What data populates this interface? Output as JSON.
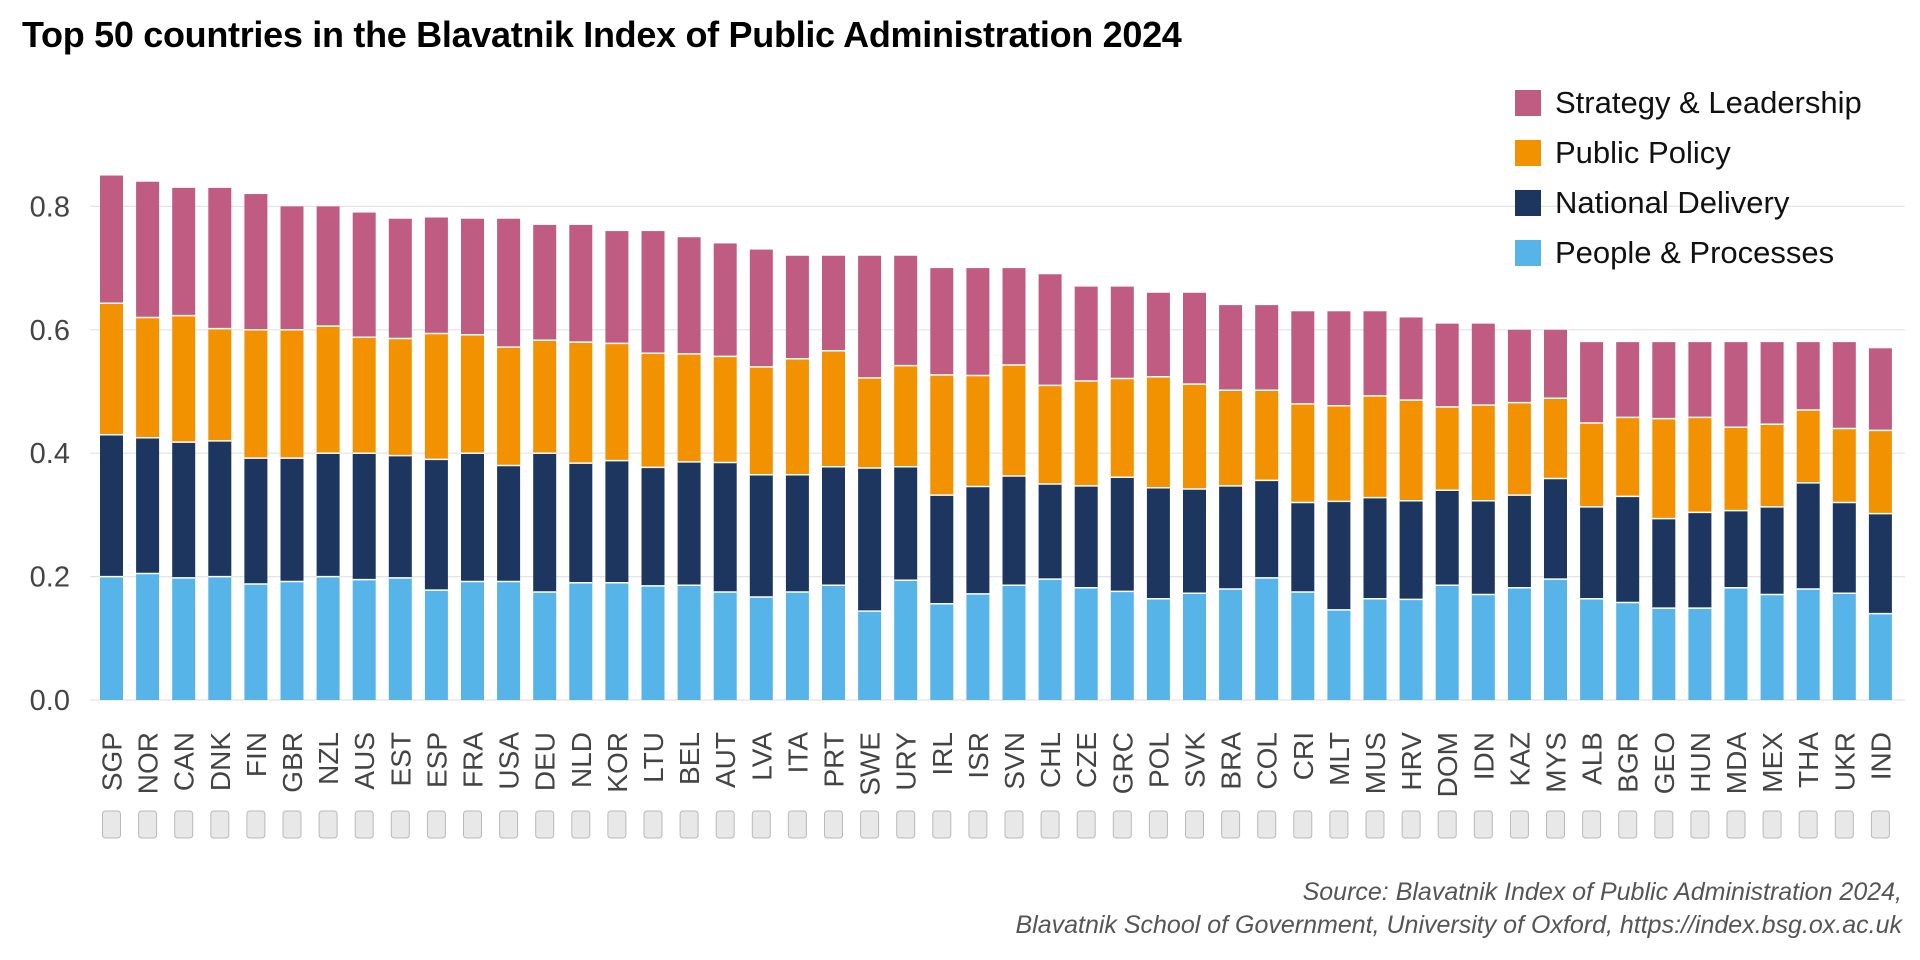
{
  "chart_data": {
    "type": "bar",
    "stacked": true,
    "title": "Top 50 countries in the Blavatnik Index of Public Administration 2024",
    "xlabel": "",
    "ylabel": "",
    "ylim": [
      0,
      0.86
    ],
    "yticks": [
      "0.0",
      "0.2",
      "0.4",
      "0.6",
      "0.8"
    ],
    "grid": "horizontal",
    "legend_position": "top-right",
    "categories": [
      "SGP",
      "NOR",
      "CAN",
      "DNK",
      "FIN",
      "GBR",
      "NZL",
      "AUS",
      "EST",
      "ESP",
      "FRA",
      "USA",
      "DEU",
      "NLD",
      "KOR",
      "LTU",
      "BEL",
      "AUT",
      "LVA",
      "ITA",
      "PRT",
      "SWE",
      "URY",
      "IRL",
      "ISR",
      "SVN",
      "CHL",
      "CZE",
      "GRC",
      "POL",
      "SVK",
      "BRA",
      "COL",
      "CRI",
      "MLT",
      "MUS",
      "HRV",
      "DOM",
      "IDN",
      "KAZ",
      "MYS",
      "ALB",
      "BGR",
      "GEO",
      "HUN",
      "MDA",
      "MEX",
      "THA",
      "UKR",
      "IND"
    ],
    "series": [
      {
        "name": "People & Processes",
        "color": "#56b4e9",
        "values": [
          0.2,
          0.205,
          0.198,
          0.2,
          0.188,
          0.192,
          0.2,
          0.195,
          0.198,
          0.178,
          0.192,
          0.192,
          0.175,
          0.19,
          0.19,
          0.185,
          0.186,
          0.175,
          0.167,
          0.175,
          0.186,
          0.144,
          0.194,
          0.156,
          0.172,
          0.186,
          0.196,
          0.182,
          0.176,
          0.164,
          0.173,
          0.18,
          0.198,
          0.175,
          0.146,
          0.164,
          0.163,
          0.186,
          0.171,
          0.182,
          0.196,
          0.164,
          0.158,
          0.149,
          0.149,
          0.182,
          0.171,
          0.18,
          0.173,
          0.14
        ]
      },
      {
        "name": "National Delivery",
        "color": "#1c3660",
        "values": [
          0.23,
          0.22,
          0.22,
          0.22,
          0.204,
          0.2,
          0.2,
          0.205,
          0.198,
          0.212,
          0.208,
          0.188,
          0.225,
          0.194,
          0.198,
          0.192,
          0.2,
          0.21,
          0.198,
          0.19,
          0.192,
          0.232,
          0.184,
          0.176,
          0.174,
          0.177,
          0.154,
          0.165,
          0.185,
          0.18,
          0.169,
          0.167,
          0.158,
          0.145,
          0.176,
          0.164,
          0.16,
          0.154,
          0.152,
          0.15,
          0.163,
          0.149,
          0.172,
          0.145,
          0.155,
          0.125,
          0.142,
          0.172,
          0.147,
          0.162
        ]
      },
      {
        "name": "Public Policy",
        "color": "#f39200",
        "values": [
          0.213,
          0.195,
          0.205,
          0.182,
          0.208,
          0.208,
          0.206,
          0.188,
          0.19,
          0.204,
          0.192,
          0.192,
          0.183,
          0.196,
          0.19,
          0.185,
          0.175,
          0.172,
          0.175,
          0.188,
          0.188,
          0.146,
          0.164,
          0.195,
          0.18,
          0.18,
          0.16,
          0.17,
          0.16,
          0.18,
          0.17,
          0.155,
          0.146,
          0.16,
          0.155,
          0.165,
          0.163,
          0.135,
          0.155,
          0.15,
          0.13,
          0.136,
          0.128,
          0.162,
          0.154,
          0.135,
          0.134,
          0.118,
          0.12,
          0.135
        ]
      },
      {
        "name": "Strategy & Leadership",
        "color": "#c05c82",
        "values": [
          0.207,
          0.22,
          0.207,
          0.228,
          0.22,
          0.2,
          0.194,
          0.202,
          0.194,
          0.188,
          0.188,
          0.208,
          0.187,
          0.19,
          0.182,
          0.198,
          0.189,
          0.183,
          0.19,
          0.167,
          0.154,
          0.198,
          0.178,
          0.173,
          0.174,
          0.157,
          0.18,
          0.153,
          0.149,
          0.136,
          0.148,
          0.138,
          0.138,
          0.15,
          0.153,
          0.137,
          0.134,
          0.135,
          0.132,
          0.118,
          0.111,
          0.131,
          0.122,
          0.124,
          0.122,
          0.138,
          0.133,
          0.11,
          0.14,
          0.133
        ]
      }
    ],
    "legend_order": [
      "Strategy & Leadership",
      "Public Policy",
      "National Delivery",
      "People & Processes"
    ],
    "source_lines": [
      "Source: Blavatnik Index of Public Administration 2024,",
      "Blavatnik School of Government, University of Oxford, https://index.bsg.ox.ac.uk"
    ]
  }
}
